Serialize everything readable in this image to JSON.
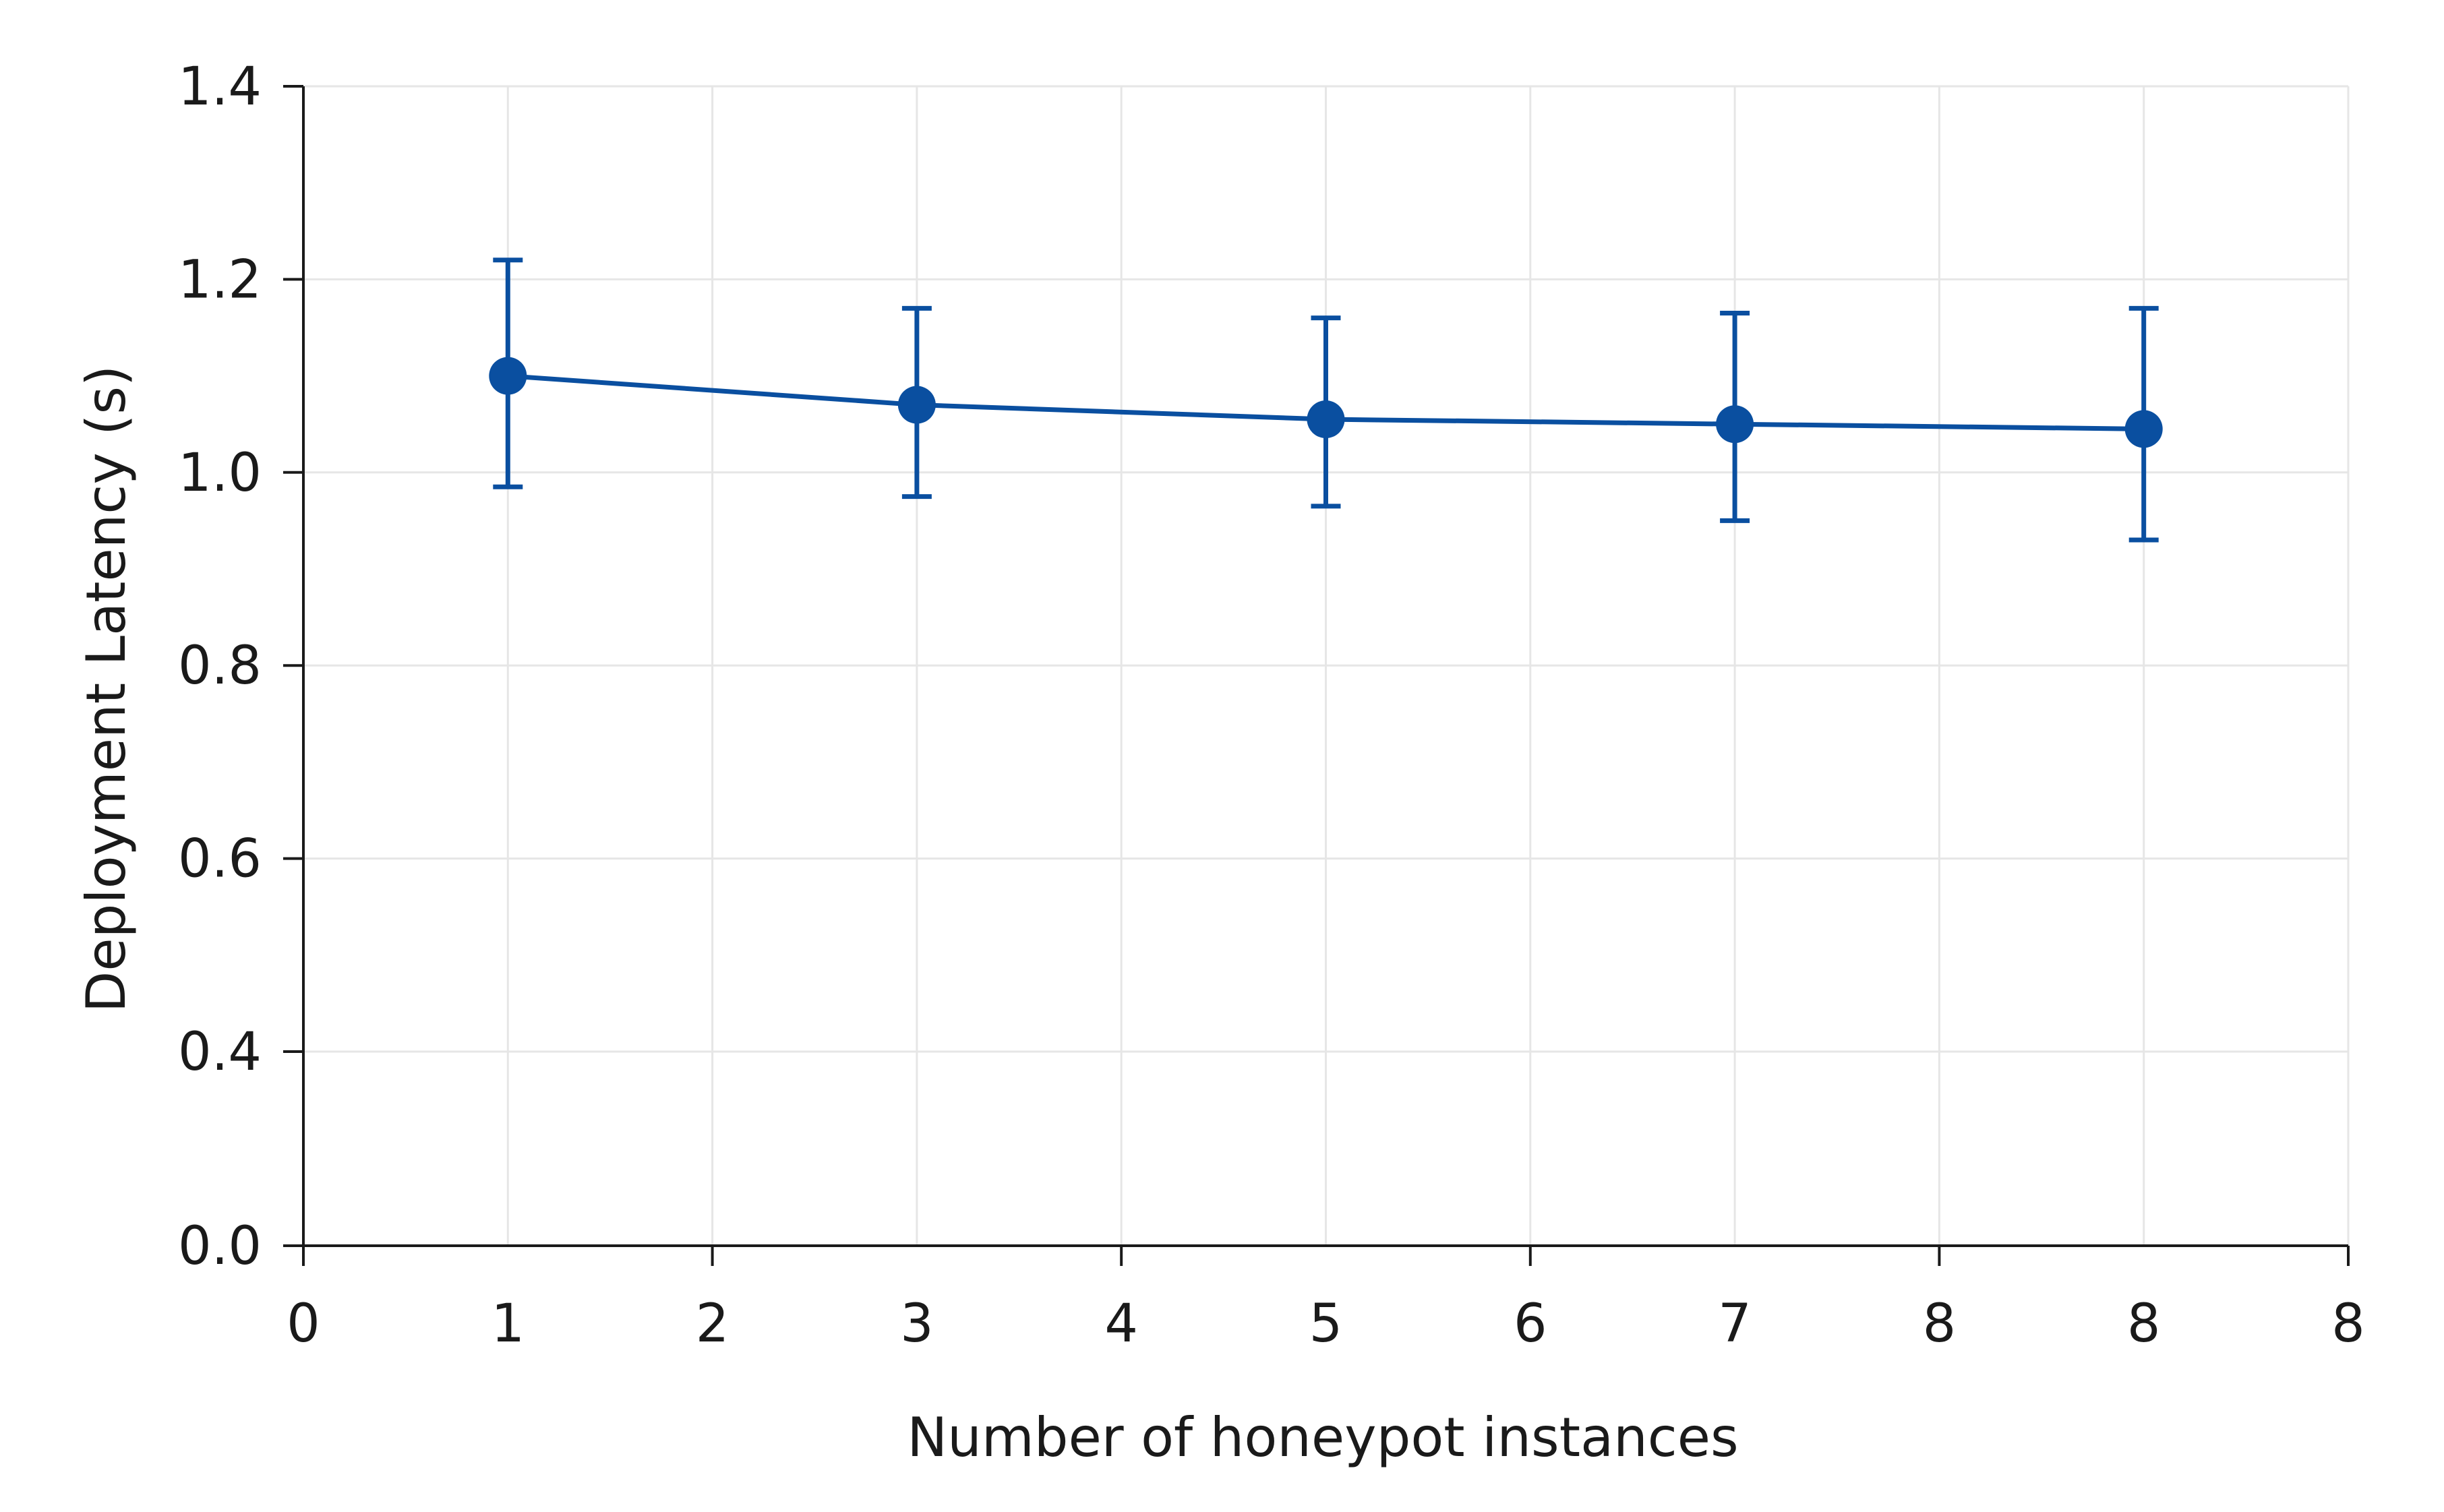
{
  "chart_data": {
    "type": "line",
    "title": "",
    "xlabel": "Number of honeypot instances",
    "ylabel": "Deployment Latency (s)",
    "x_tick_labels": [
      "0",
      "1",
      "2",
      "3",
      "4",
      "5",
      "6",
      "7",
      "8",
      "8",
      "8"
    ],
    "y_ticks": [
      0.0,
      0.4,
      0.6,
      0.8,
      1.0,
      1.2,
      1.4
    ],
    "y_tick_labels": [
      "0.0",
      "0.4",
      "0.6",
      "0.8",
      "1.0",
      "1.2",
      "1.4"
    ],
    "xlim": [
      0,
      10
    ],
    "ylim": [
      0.0,
      1.4
    ],
    "y_axis_note": "tick 0.0 at base; 0.4–1.4 evenly spaced above",
    "grid": true,
    "series": [
      {
        "x_labels": [
          "1",
          "3",
          "5",
          "7",
          "8"
        ],
        "x_positions": [
          1,
          3,
          5,
          7,
          9
        ],
        "values": [
          1.1,
          1.07,
          1.055,
          1.05,
          1.045
        ],
        "error_low": [
          0.985,
          0.975,
          0.965,
          0.95,
          0.93
        ],
        "error_high": [
          1.22,
          1.17,
          1.16,
          1.165,
          1.17
        ],
        "color": "#0a4fa0"
      }
    ]
  },
  "colors": {
    "series": "#0a4fa0",
    "axis": "#1a1a1a",
    "grid": "#e6e6e6"
  }
}
